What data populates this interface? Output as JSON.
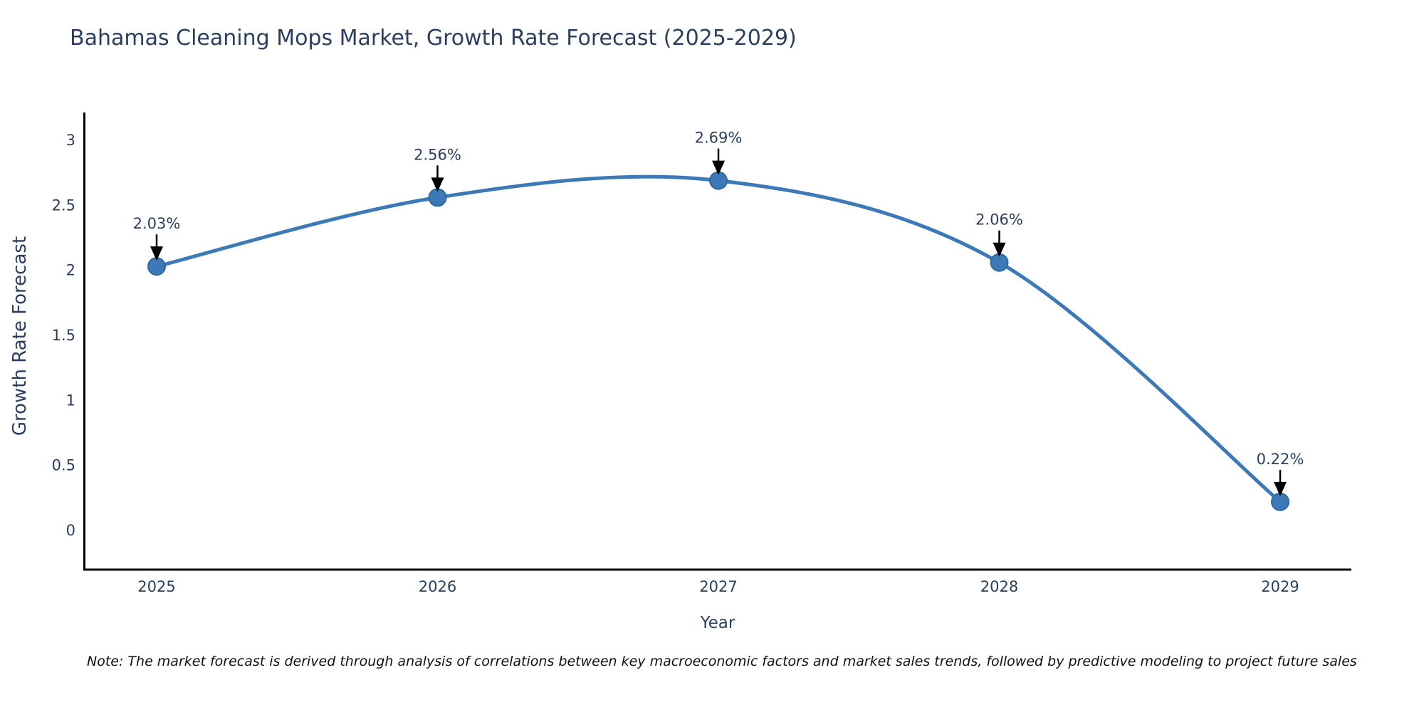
{
  "chart_data": {
    "type": "line",
    "title": "Bahamas Cleaning Mops Market, Growth Rate Forecast (2025-2029)",
    "xlabel": "Year",
    "ylabel": "Growth Rate Forecast",
    "categories": [
      "2025",
      "2026",
      "2027",
      "2028",
      "2029"
    ],
    "series": [
      {
        "name": "Growth Rate Forecast",
        "values": [
          2.03,
          2.56,
          2.69,
          2.06,
          0.22
        ],
        "point_labels": [
          "2.03%",
          "2.56%",
          "2.69%",
          "2.06%",
          "0.22%"
        ]
      }
    ],
    "yticks": [
      3,
      2.5,
      2,
      1.5,
      1,
      0.5,
      0
    ],
    "ylim": [
      -0.3,
      3.2
    ],
    "grid": false,
    "legend_position": "none",
    "line_shape": "spline",
    "annotations_style": "value-label-with-down-arrow",
    "colors": {
      "line": "#3c79b6",
      "marker_fill": "#3c79b6",
      "marker_edge": "#2e699f",
      "axis": "#000000",
      "text": "#2a3f5f",
      "arrow": "#000000",
      "background": "#ffffff"
    }
  },
  "note": "Note: The market forecast is derived through analysis of correlations between key macroeconomic factors and market sales trends, followed by predictive modeling to project future sales"
}
